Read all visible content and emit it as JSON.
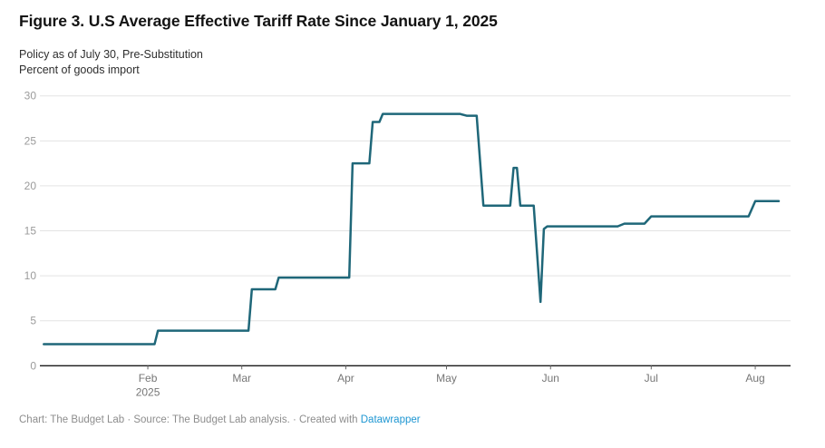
{
  "header": {
    "title": "Figure 3. U.S Average Effective Tariff Rate Since January 1, 2025",
    "subtitle_line1": "Policy as of July 30, Pre-Substitution",
    "subtitle_line2": "Percent of goods import"
  },
  "chart_data": {
    "type": "line",
    "title": "Figure 3. U.S Average Effective Tariff Rate Since January 1, 2025",
    "subtitle": "Policy as of July 30, Pre-Substitution",
    "ylabel": "Percent of goods import",
    "xlabel": "",
    "grid": true,
    "legend": false,
    "x_axis": {
      "range": [
        "2025-01-01",
        "2025-08-08"
      ],
      "tick_labels": [
        "Feb",
        "Mar",
        "Apr",
        "May",
        "Jun",
        "Jul",
        "Aug"
      ],
      "tick_dates": [
        "2025-02-01",
        "2025-03-01",
        "2025-04-01",
        "2025-05-01",
        "2025-06-01",
        "2025-07-01",
        "2025-08-01"
      ],
      "year_label": "2025"
    },
    "y_axis": {
      "ticks": [
        0,
        5,
        10,
        15,
        20,
        25,
        30
      ],
      "range": [
        0,
        30
      ]
    },
    "series": [
      {
        "name": "U.S. average effective tariff rate",
        "color": "#1f6779",
        "points": [
          [
            "2025-01-01",
            2.4
          ],
          [
            "2025-02-03",
            2.4
          ],
          [
            "2025-02-04",
            3.9
          ],
          [
            "2025-03-03",
            3.9
          ],
          [
            "2025-03-04",
            8.5
          ],
          [
            "2025-03-11",
            8.5
          ],
          [
            "2025-03-12",
            9.8
          ],
          [
            "2025-04-02",
            9.8
          ],
          [
            "2025-04-03",
            22.5
          ],
          [
            "2025-04-08",
            22.5
          ],
          [
            "2025-04-09",
            27.1
          ],
          [
            "2025-04-11",
            27.1
          ],
          [
            "2025-04-12",
            28.0
          ],
          [
            "2025-05-05",
            28.0
          ],
          [
            "2025-05-07",
            27.8
          ],
          [
            "2025-05-10",
            27.8
          ],
          [
            "2025-05-12",
            17.8
          ],
          [
            "2025-05-20",
            17.8
          ],
          [
            "2025-05-21",
            22.0
          ],
          [
            "2025-05-22",
            22.0
          ],
          [
            "2025-05-23",
            17.8
          ],
          [
            "2025-05-27",
            17.8
          ],
          [
            "2025-05-29",
            7.1
          ],
          [
            "2025-05-30",
            15.2
          ],
          [
            "2025-05-31",
            15.5
          ],
          [
            "2025-06-21",
            15.5
          ],
          [
            "2025-06-23",
            15.8
          ],
          [
            "2025-06-29",
            15.8
          ],
          [
            "2025-07-01",
            16.6
          ],
          [
            "2025-07-30",
            16.6
          ],
          [
            "2025-08-01",
            18.3
          ],
          [
            "2025-08-08",
            18.3
          ]
        ]
      }
    ]
  },
  "footer": {
    "text_prefix": "Chart: The Budget Lab · Source: The Budget Lab analysis. · Created with ",
    "link_label": "Datawrapper"
  },
  "colors": {
    "line": "#1f6779",
    "grid": "#e3e3e3",
    "axis": "#1a1a1a",
    "tick_label": "#9b9b9b",
    "month_label": "#767676",
    "month_tick": "#666666",
    "footer_text": "#8d8d8d",
    "link": "#1d96d2",
    "background": "#ffffff"
  }
}
